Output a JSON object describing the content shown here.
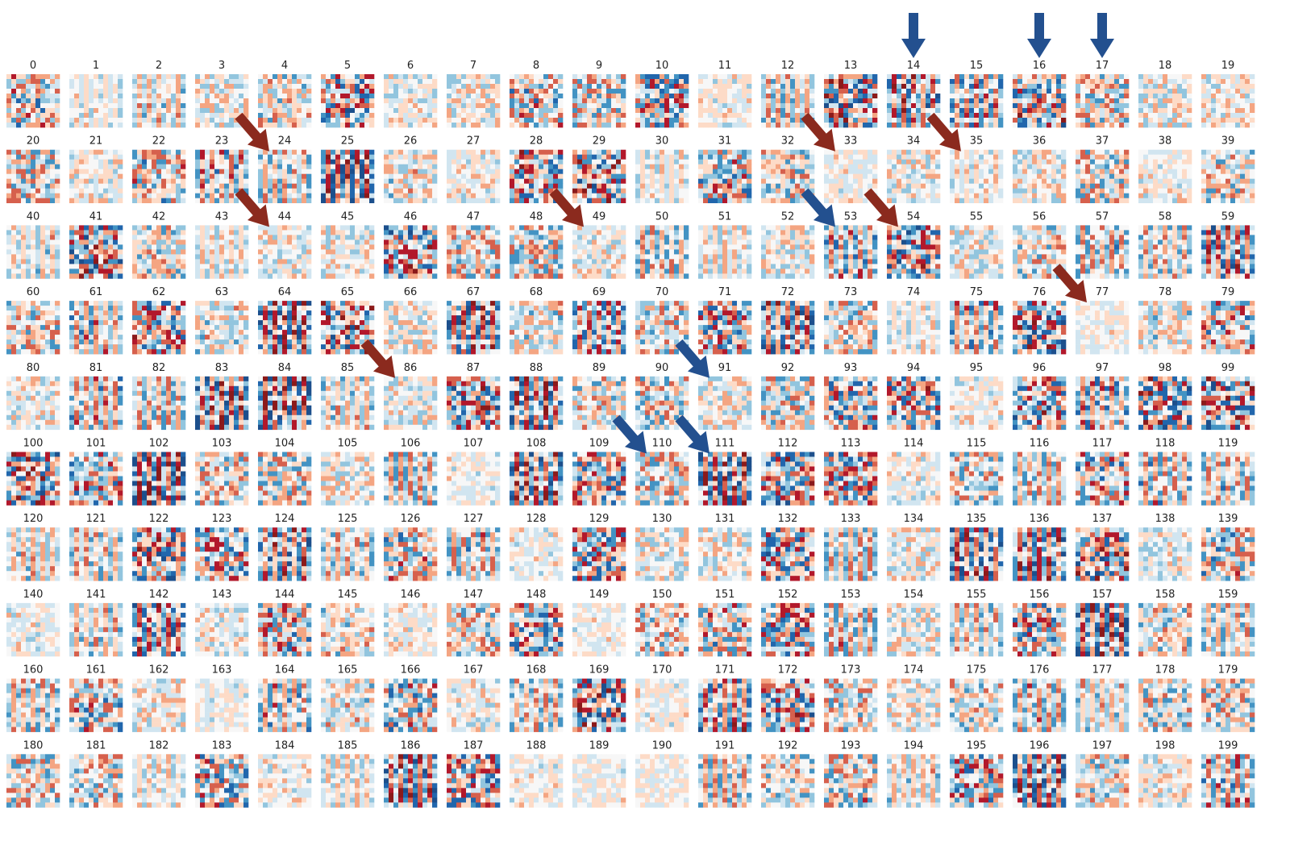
{
  "panel_labels": [
    "0",
    "1",
    "2",
    "3",
    "4",
    "5",
    "6",
    "7",
    "8",
    "9",
    "10",
    "11",
    "12",
    "13",
    "14",
    "15",
    "16",
    "17",
    "18",
    "19",
    "20",
    "21",
    "22",
    "23",
    "24",
    "25",
    "26",
    "27",
    "28",
    "29",
    "30",
    "31",
    "32",
    "33",
    "34",
    "35",
    "36",
    "37",
    "38",
    "39",
    "40",
    "41",
    "42",
    "43",
    "44",
    "45",
    "46",
    "47",
    "48",
    "49",
    "50",
    "51",
    "52",
    "53",
    "54",
    "55",
    "56",
    "57",
    "58",
    "59",
    "60",
    "61",
    "62",
    "63",
    "64",
    "65",
    "66",
    "67",
    "68",
    "69",
    "70",
    "71",
    "72",
    "73",
    "74",
    "75",
    "76",
    "77",
    "78",
    "79",
    "80",
    "81",
    "82",
    "83",
    "84",
    "85",
    "86",
    "87",
    "88",
    "89",
    "90",
    "91",
    "92",
    "93",
    "94",
    "95",
    "96",
    "97",
    "98",
    "99",
    "100",
    "101",
    "102",
    "103",
    "104",
    "105",
    "106",
    "107",
    "108",
    "109",
    "110",
    "111",
    "112",
    "113",
    "114",
    "115",
    "116",
    "117",
    "118",
    "119",
    "120",
    "121",
    "122",
    "123",
    "124",
    "125",
    "126",
    "127",
    "128",
    "129",
    "130",
    "131",
    "132",
    "133",
    "134",
    "135",
    "136",
    "137",
    "138",
    "139",
    "140",
    "141",
    "142",
    "143",
    "144",
    "145",
    "146",
    "147",
    "148",
    "149",
    "150",
    "151",
    "152",
    "153",
    "154",
    "155",
    "156",
    "157",
    "158",
    "159",
    "160",
    "161",
    "162",
    "163",
    "164",
    "165",
    "166",
    "167",
    "168",
    "169",
    "170",
    "171",
    "172",
    "173",
    "174",
    "175",
    "176",
    "177",
    "178",
    "179",
    "180",
    "181",
    "182",
    "183",
    "184",
    "185",
    "186",
    "187",
    "188",
    "189",
    "190",
    "191",
    "192",
    "193",
    "194",
    "195",
    "196",
    "197",
    "198",
    "199"
  ]
}
